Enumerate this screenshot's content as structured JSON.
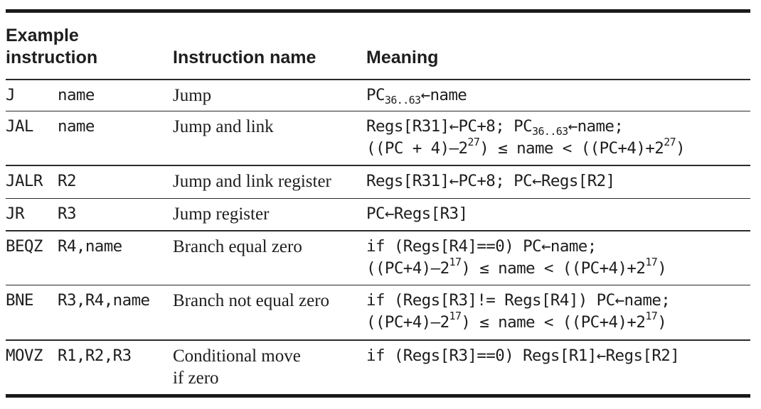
{
  "header": {
    "col1_line1": "Example",
    "col1_line2": "instruction",
    "col2": "Instruction name",
    "col3": "Meaning"
  },
  "rows": [
    {
      "op": "J",
      "args": "name",
      "name": "Jump",
      "meaning": [
        [
          "PC",
          {
            "sub": "36..63"
          },
          "←name"
        ]
      ]
    },
    {
      "op": "JAL",
      "args": "name",
      "name": "Jump and link",
      "meaning": [
        [
          "Regs[R31]←PC+8; PC",
          {
            "sub": "36..63"
          },
          "←name;"
        ],
        [
          "((PC + 4)–2",
          {
            "sup": "27"
          },
          ") ≤ name < ((PC+4)+2",
          {
            "sup": "27"
          },
          ")"
        ]
      ]
    },
    {
      "op": "JALR",
      "args": "R2",
      "name": "Jump and link register",
      "meaning": [
        [
          "Regs[R31]←PC+8; PC←Regs[R2]"
        ]
      ]
    },
    {
      "op": "JR",
      "args": "R3",
      "name": "Jump register",
      "meaning": [
        [
          "PC←Regs[R3]"
        ]
      ]
    },
    {
      "op": "BEQZ",
      "args": "R4,name",
      "name": "Branch equal zero",
      "meaning": [
        [
          "if (Regs[R4]==0) PC←name;"
        ],
        [
          "((PC+4)–2",
          {
            "sup": "17"
          },
          ") ≤ name < ((PC+4)+2",
          {
            "sup": "17"
          },
          ")"
        ]
      ]
    },
    {
      "op": "BNE",
      "args": "R3,R4,name",
      "name": "Branch not equal zero",
      "meaning": [
        [
          "if (Regs[R3]!= Regs[R4]) PC←name;"
        ],
        [
          "((PC+4)–2",
          {
            "sup": "17"
          },
          ") ≤ name < ((PC+4)+2",
          {
            "sup": "17"
          },
          ")"
        ]
      ]
    },
    {
      "op": "MOVZ",
      "args": "R1,R2,R3",
      "name": "Conditional move if zero",
      "name_lines": [
        "Conditional move",
        "if zero"
      ],
      "meaning": [
        [
          "if (Regs[R3]==0) Regs[R1]←Regs[R2]"
        ]
      ]
    }
  ]
}
